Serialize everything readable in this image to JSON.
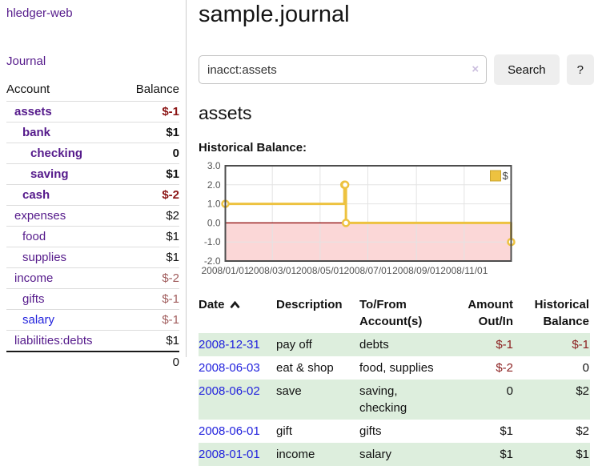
{
  "sidebar": {
    "brand": "hledger-web",
    "journal_link": "Journal",
    "columns": {
      "account": "Account",
      "balance": "Balance"
    },
    "accounts": [
      {
        "label": "assets",
        "indent": 1,
        "bold": true,
        "balance": "$-1",
        "balance_tone": "negative-strong"
      },
      {
        "label": "bank",
        "indent": 2,
        "bold": true,
        "balance": "$1",
        "balance_tone": "normal"
      },
      {
        "label": "checking",
        "indent": 3,
        "bold": true,
        "balance": "0",
        "balance_tone": "normal"
      },
      {
        "label": "saving",
        "indent": 3,
        "bold": true,
        "balance": "$1",
        "balance_tone": "normal"
      },
      {
        "label": "cash",
        "indent": 2,
        "bold": true,
        "balance": "$-2",
        "balance_tone": "negative-strong"
      },
      {
        "label": "expenses",
        "indent": 1,
        "bold": false,
        "balance": "$2",
        "balance_tone": "normal"
      },
      {
        "label": "food",
        "indent": 2,
        "bold": false,
        "balance": "$1",
        "balance_tone": "normal"
      },
      {
        "label": "supplies",
        "indent": 2,
        "bold": false,
        "balance": "$1",
        "balance_tone": "normal"
      },
      {
        "label": "income",
        "indent": 1,
        "bold": false,
        "balance": "$-2",
        "balance_tone": "negative-soft"
      },
      {
        "label": "gifts",
        "indent": 2,
        "bold": false,
        "balance": "$-1",
        "balance_tone": "negative-soft"
      },
      {
        "label": "salary",
        "indent": 2,
        "bold": false,
        "balance": "$-1",
        "balance_tone": "negative-soft",
        "link_state": "unvisited"
      },
      {
        "label": "liabilities:debts",
        "indent": 1,
        "bold": false,
        "balance": "$1",
        "balance_tone": "normal"
      }
    ],
    "total": "0"
  },
  "main": {
    "title": "sample.journal"
  },
  "search": {
    "value": "inacct:assets",
    "clear_label": "×",
    "button_label": "Search",
    "help_label": "?"
  },
  "register": {
    "heading": "assets",
    "chart_label": "Historical Balance:",
    "headers": {
      "date": "Date",
      "description": "Description",
      "account": "To/From Account(s)",
      "amount": "Amount Out/In",
      "balance": "Historical Balance"
    },
    "rows": [
      {
        "date": "2008-12-31",
        "description": "pay off",
        "account": "debts",
        "amount": "$-1",
        "amount_tone": "negative",
        "balance": "$-1",
        "balance_tone": "negative",
        "shaded": true
      },
      {
        "date": "2008-06-03",
        "description": "eat & shop",
        "account": "food, supplies",
        "amount": "$-2",
        "amount_tone": "negative",
        "balance": "0",
        "balance_tone": "normal",
        "shaded": false
      },
      {
        "date": "2008-06-02",
        "description": "save",
        "account": "saving, checking",
        "amount": "0",
        "amount_tone": "normal",
        "balance": "$2",
        "balance_tone": "normal",
        "shaded": true
      },
      {
        "date": "2008-06-01",
        "description": "gift",
        "account": "gifts",
        "amount": "$1",
        "amount_tone": "normal",
        "balance": "$2",
        "balance_tone": "normal",
        "shaded": false
      },
      {
        "date": "2008-01-01",
        "description": "income",
        "account": "salary",
        "amount": "$1",
        "amount_tone": "normal",
        "balance": "$1",
        "balance_tone": "normal",
        "shaded": true
      }
    ]
  },
  "chart_data": {
    "type": "line",
    "step": true,
    "title": "Historical Balance",
    "series": [
      {
        "name": "$",
        "color": "#EDC240",
        "points": [
          [
            "2008-01-01",
            1
          ],
          [
            "2008-06-01",
            2
          ],
          [
            "2008-06-02",
            2
          ],
          [
            "2008-06-03",
            0
          ],
          [
            "2008-12-31",
            -1
          ]
        ]
      }
    ],
    "x_range": [
      "2008-01-01",
      "2008-12-31"
    ],
    "ylim": [
      -2,
      3
    ],
    "yticks": [
      3,
      2,
      1,
      0,
      -1,
      -2
    ],
    "xticks": [
      "2008/01/01",
      "2008/03/01",
      "2008/05/01",
      "2008/07/01",
      "2008/09/01",
      "2008/11/01"
    ],
    "legend": {
      "label": "$",
      "position": "top-right"
    },
    "grid": true,
    "marker": "circle",
    "negative_region_color": "#fbd7d7",
    "zero_line_color": "#8b0000",
    "grid_color": "#e3e3e3",
    "border_color": "#4d4d4d"
  },
  "theme": {
    "visited_link": "#551a8b",
    "unvisited_link": "#2222dd",
    "negative_strong": "#8b1414",
    "negative_soft": "#a05c5c",
    "row_shade": "#ddeedd",
    "series_gold": "#EDC240"
  }
}
